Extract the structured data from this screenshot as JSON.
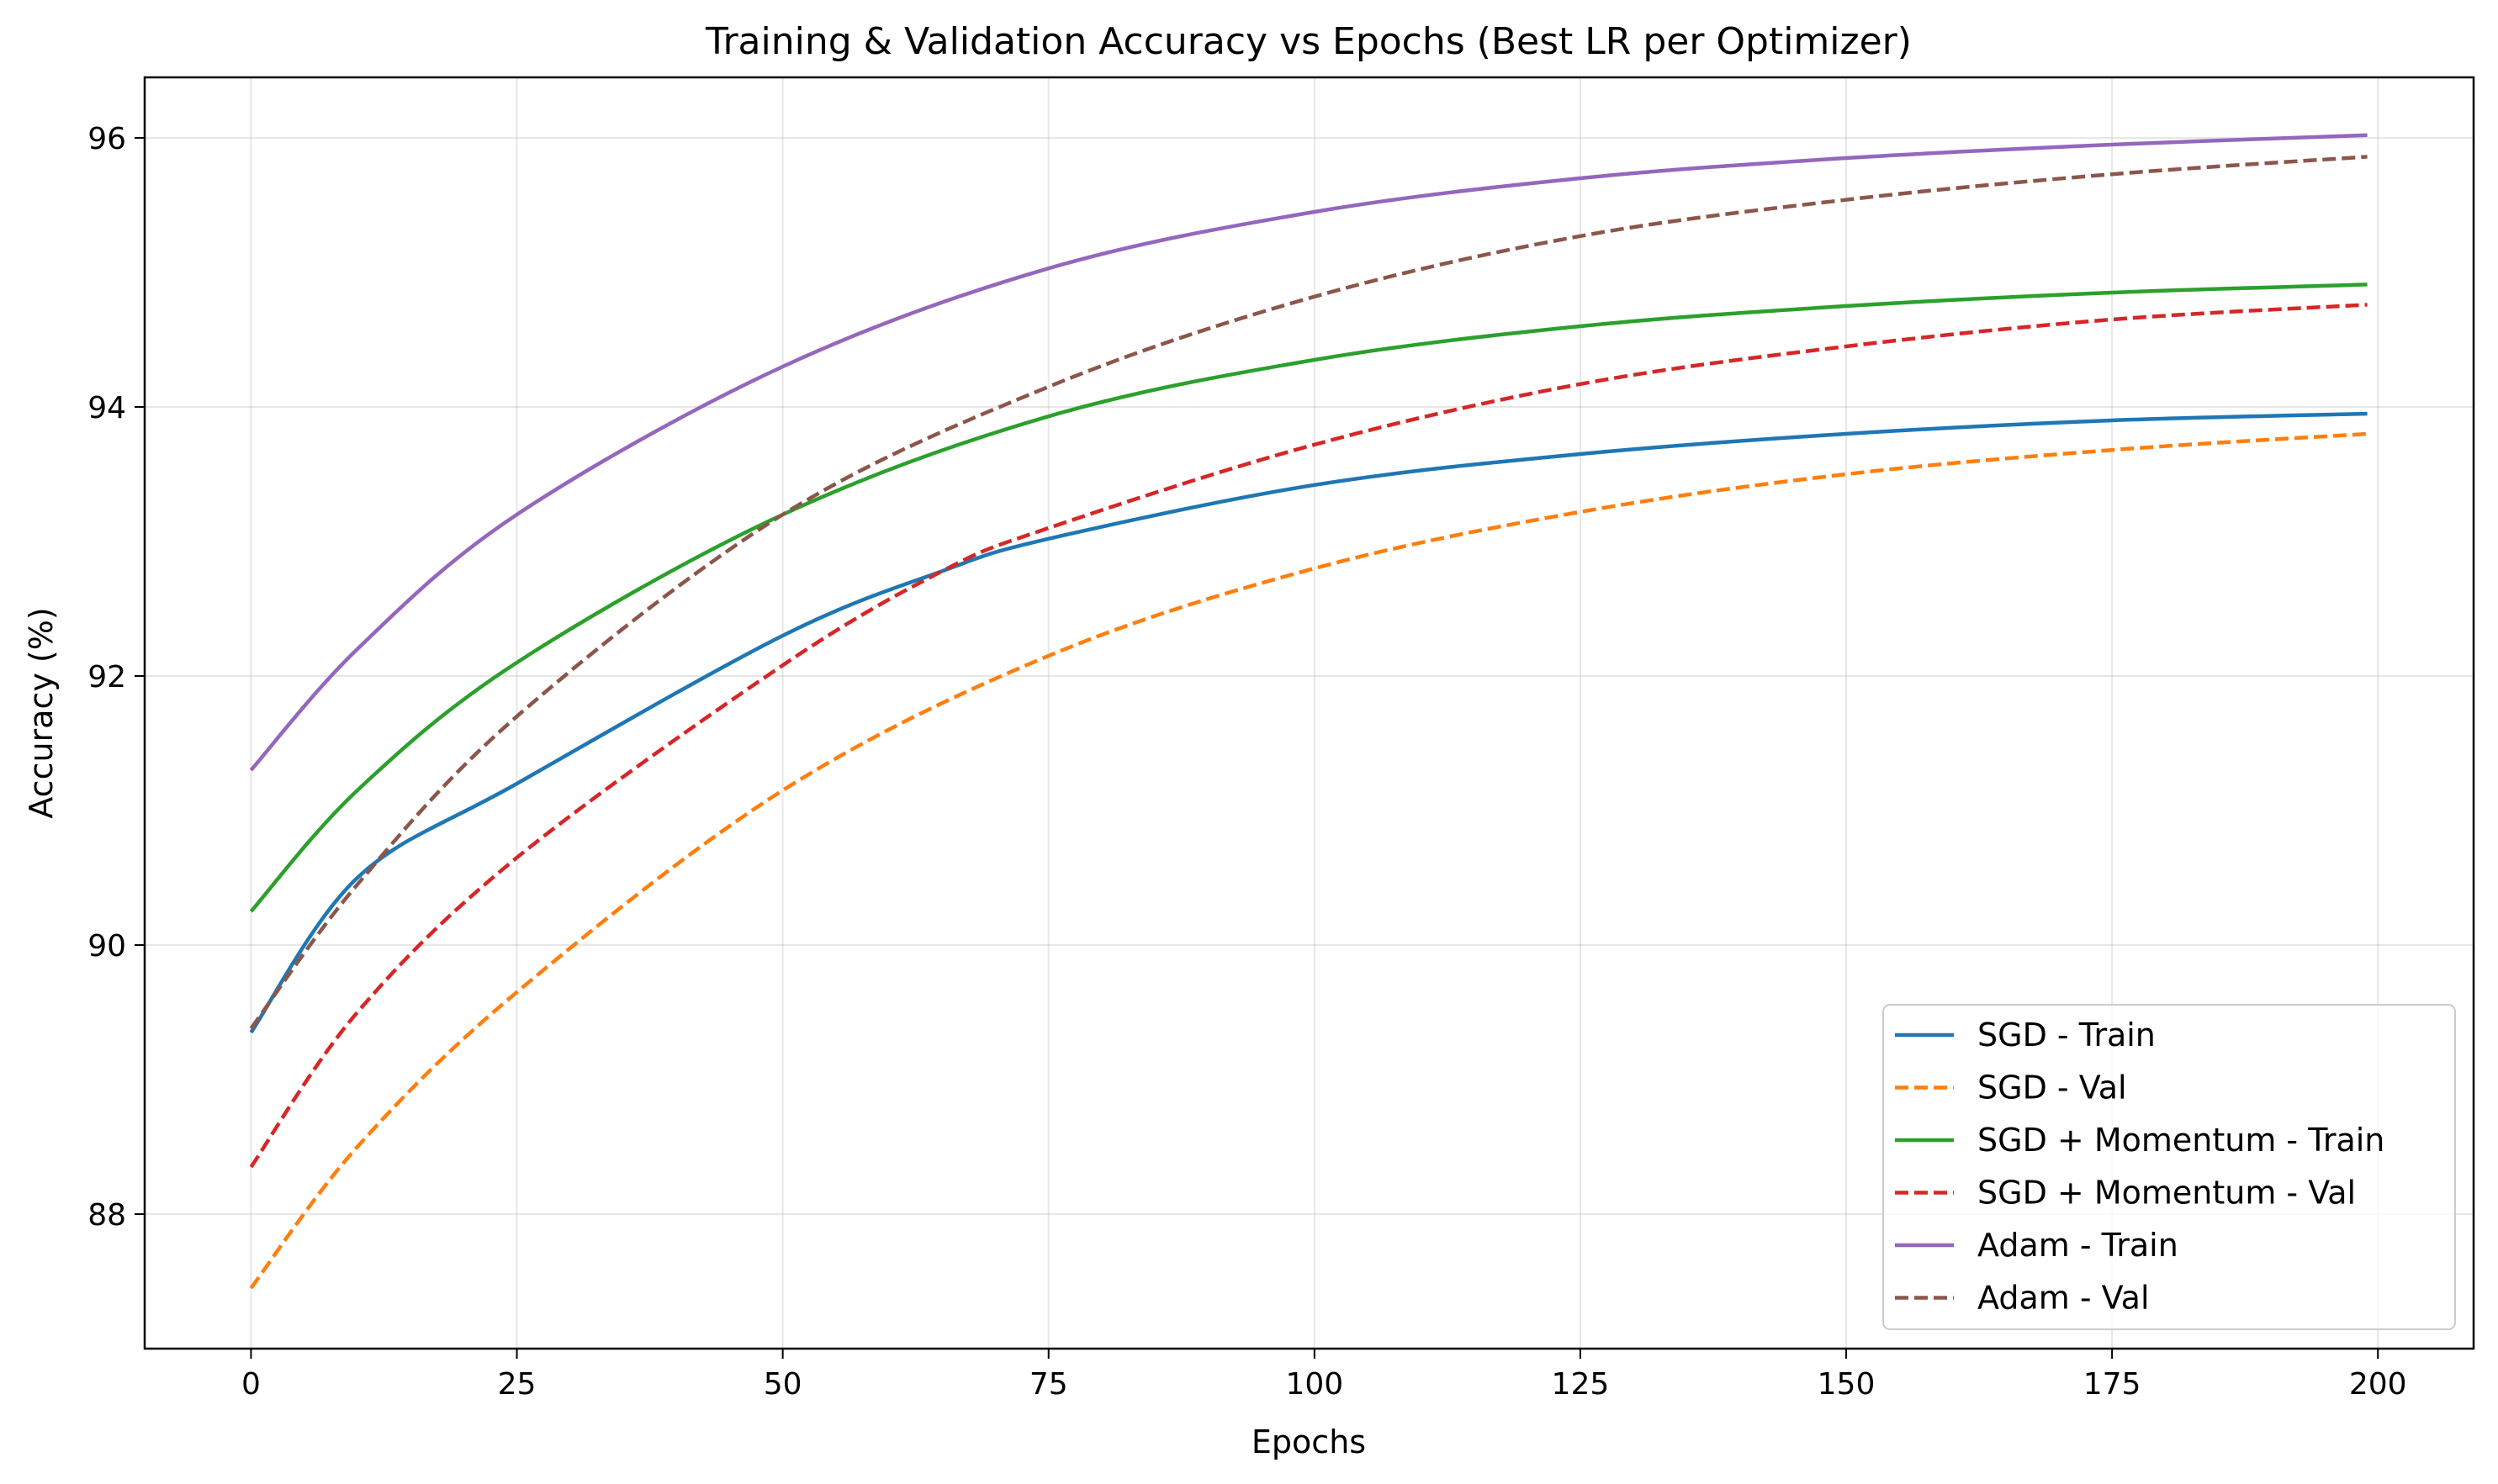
{
  "chart_data": {
    "type": "line",
    "title": "Training & Validation Accuracy vs Epochs (Best LR per Optimizer)",
    "xlabel": "Epochs",
    "ylabel": "Accuracy (%)",
    "xlim": [
      -10,
      209
    ],
    "ylim": [
      87.0,
      96.45
    ],
    "xticks": [
      0,
      25,
      50,
      75,
      100,
      125,
      150,
      175,
      200
    ],
    "yticks": [
      88,
      90,
      92,
      94,
      96
    ],
    "grid": true,
    "legend_position": "lower right",
    "series": [
      {
        "name": "SGD - Train",
        "color": "#1f77b4",
        "style": "solid",
        "x": [
          0,
          10,
          25,
          50,
          65,
          75,
          100,
          125,
          150,
          175,
          199
        ],
        "y": [
          89.35,
          90.5,
          91.2,
          92.3,
          92.78,
          93.02,
          93.42,
          93.65,
          93.8,
          93.9,
          93.95
        ]
      },
      {
        "name": "SGD - Val",
        "color": "#ff7f0e",
        "style": "dashed",
        "x": [
          0,
          10,
          25,
          50,
          75,
          100,
          125,
          150,
          175,
          199
        ],
        "y": [
          87.45,
          88.5,
          89.65,
          91.15,
          92.15,
          92.8,
          93.22,
          93.5,
          93.68,
          93.8
        ]
      },
      {
        "name": "SGD + Momentum - Train",
        "color": "#2ca02c",
        "style": "solid",
        "x": [
          0,
          10,
          25,
          50,
          75,
          100,
          125,
          150,
          175,
          199
        ],
        "y": [
          90.25,
          91.15,
          92.1,
          93.2,
          93.93,
          94.35,
          94.6,
          94.75,
          94.85,
          94.91
        ]
      },
      {
        "name": "SGD + Momentum - Val",
        "color": "#d62728",
        "style": "dashed",
        "x": [
          0,
          10,
          25,
          50,
          65,
          75,
          100,
          125,
          150,
          175,
          199
        ],
        "y": [
          88.35,
          89.5,
          90.65,
          92.08,
          92.78,
          93.1,
          93.72,
          94.17,
          94.45,
          94.65,
          94.76
        ]
      },
      {
        "name": "Adam - Train",
        "color": "#9467bd",
        "style": "solid",
        "x": [
          0,
          10,
          25,
          50,
          75,
          100,
          125,
          150,
          175,
          199
        ],
        "y": [
          91.3,
          92.2,
          93.2,
          94.3,
          95.03,
          95.45,
          95.7,
          95.85,
          95.95,
          96.02
        ]
      },
      {
        "name": "Adam - Val",
        "color": "#8c564b",
        "style": "dashed",
        "x": [
          0,
          10,
          25,
          50,
          75,
          100,
          125,
          150,
          175,
          199
        ],
        "y": [
          89.38,
          90.45,
          91.7,
          93.2,
          94.15,
          94.82,
          95.27,
          95.54,
          95.73,
          95.86
        ]
      }
    ]
  }
}
